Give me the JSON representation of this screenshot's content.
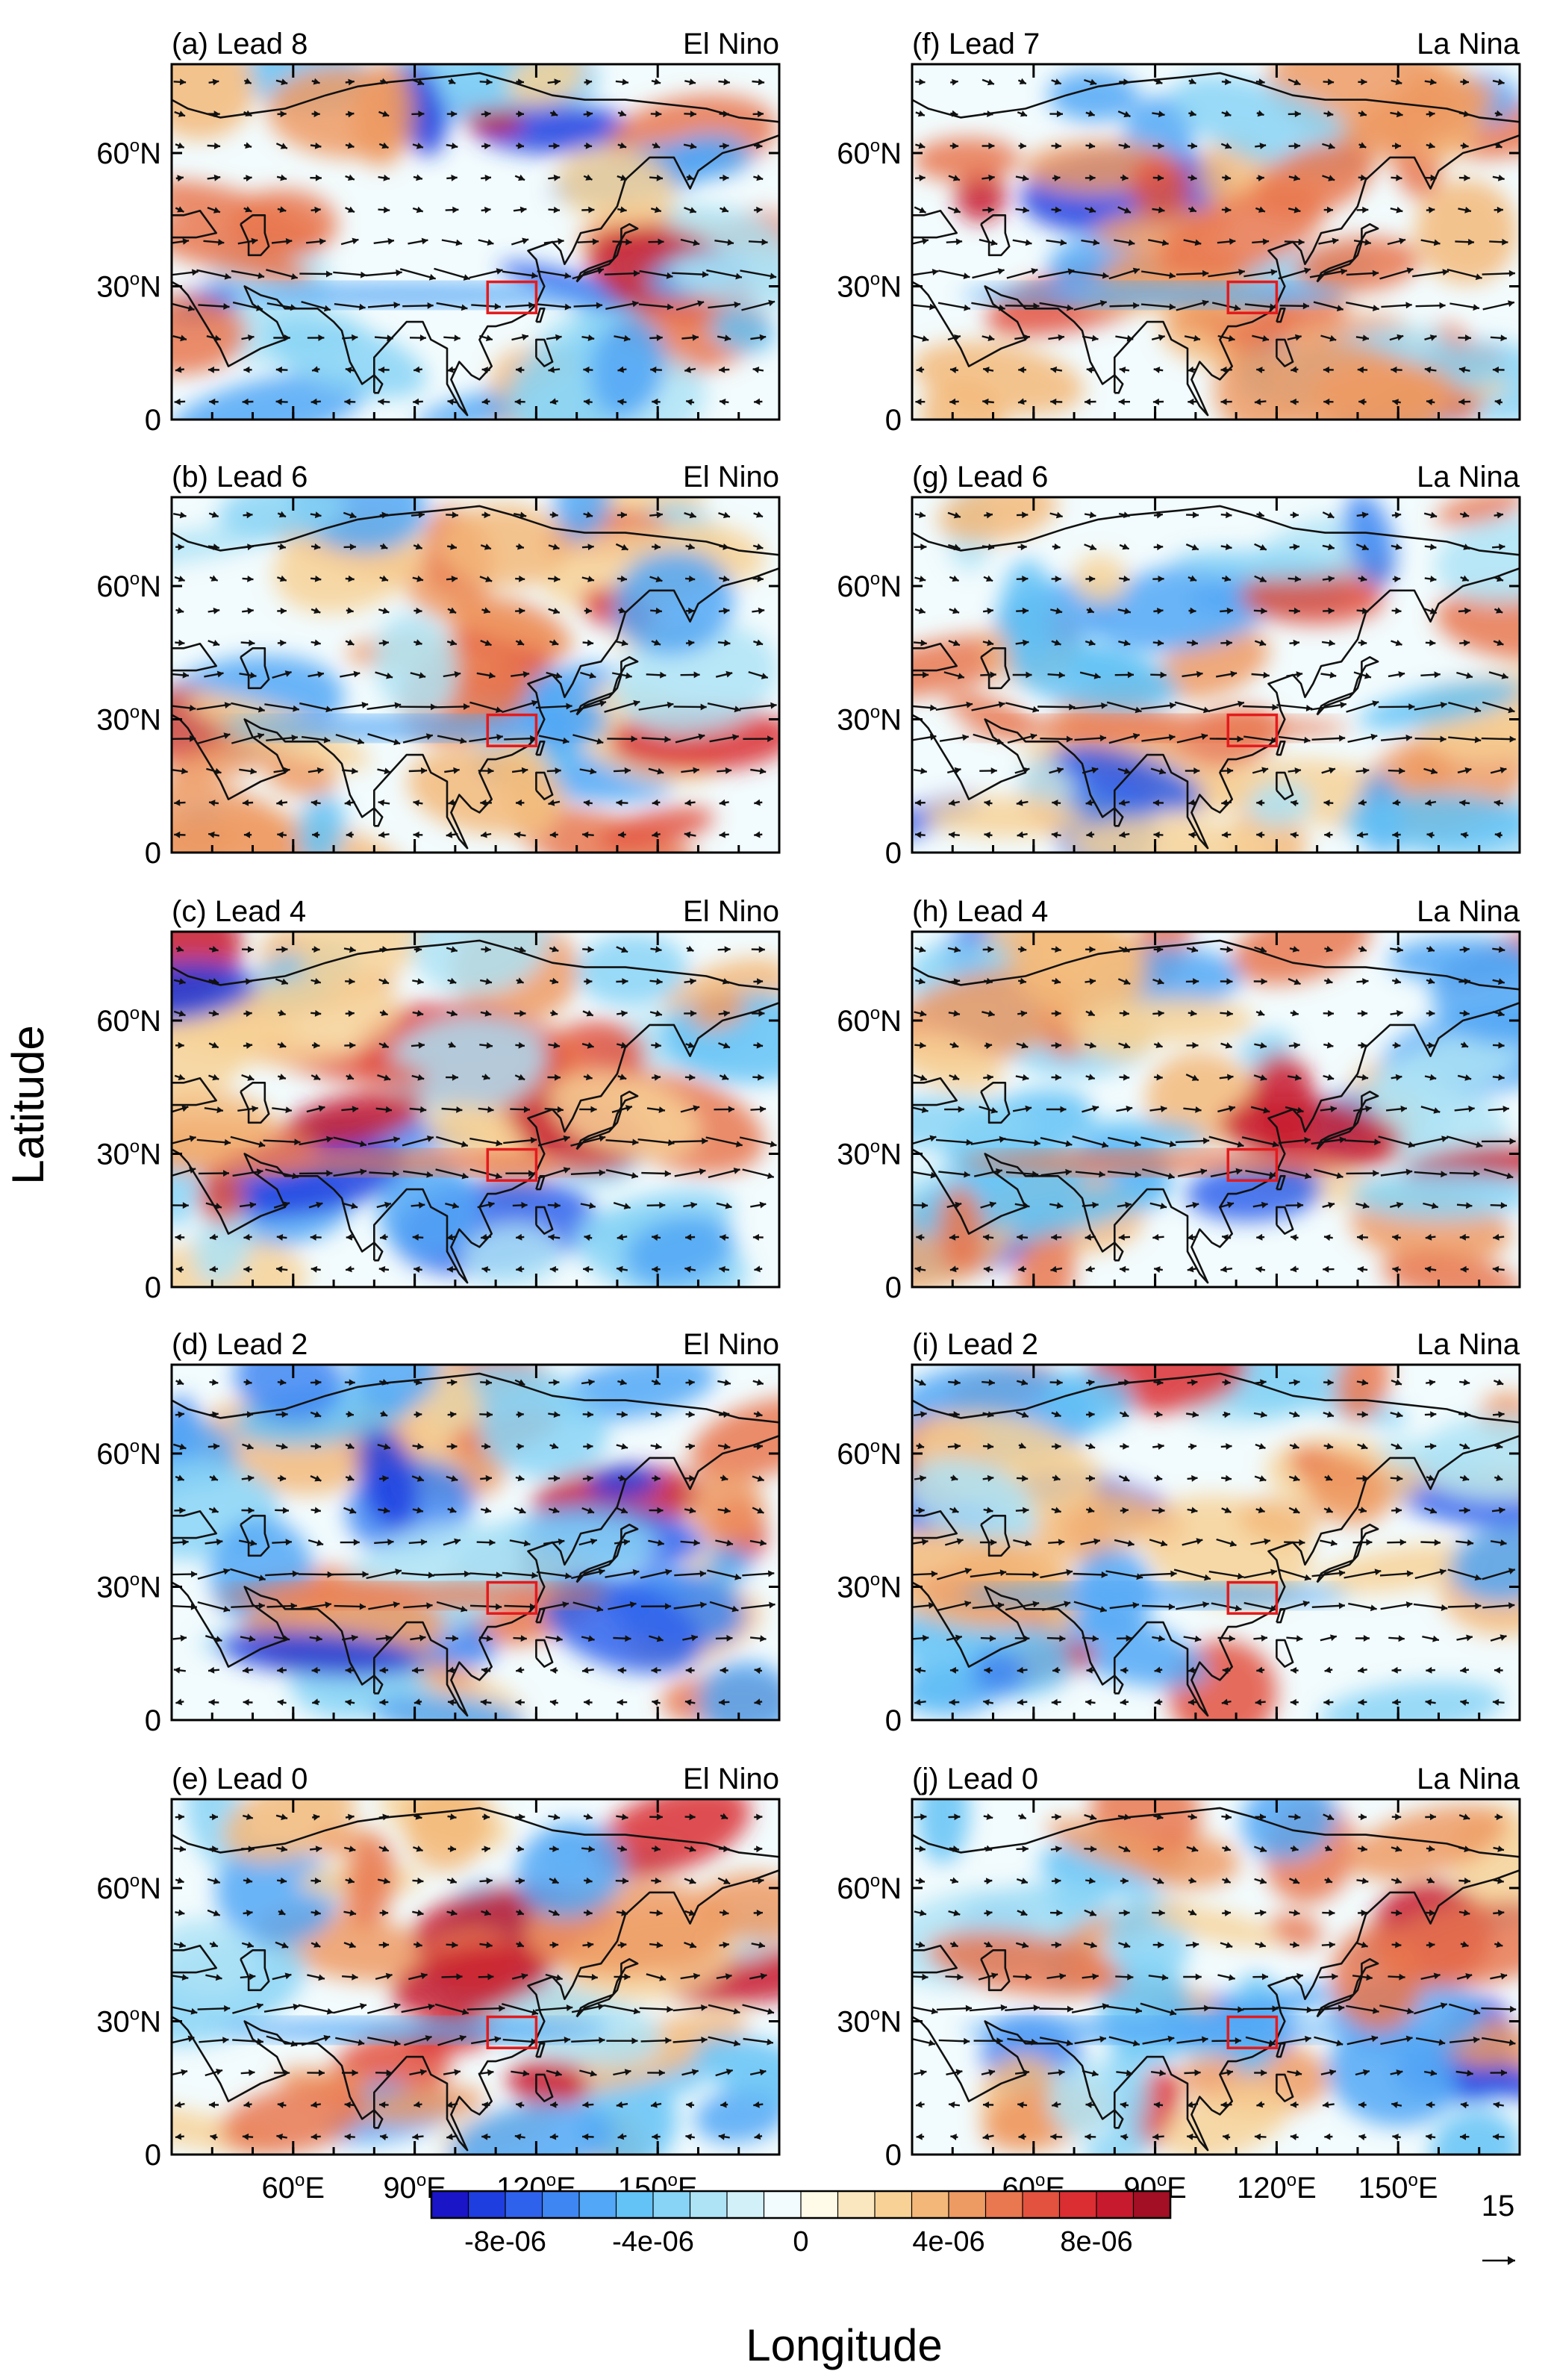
{
  "figure": {
    "ylabel": "Latitude",
    "xlabel": "Longitude",
    "degree_symbol": "o",
    "y_ticks_left": [
      {
        "value": 60,
        "label": "60",
        "suffix": "N"
      },
      {
        "value": 30,
        "label": "30",
        "suffix": "N"
      },
      {
        "value": 0,
        "label": "0",
        "suffix": ""
      }
    ],
    "x_ticks_left_column": [
      {
        "value": 60,
        "label": "60",
        "suffix": "E"
      },
      {
        "value": 90,
        "label": "90",
        "suffix": "E"
      },
      {
        "value": 120,
        "label": "120",
        "suffix": "E"
      },
      {
        "value": 150,
        "label": "150",
        "suffix": "E"
      }
    ],
    "x_ticks_right_column": [
      {
        "value": 60,
        "label": "60",
        "suffix": "E"
      },
      {
        "value": 90,
        "label": "90",
        "suffix": "E"
      },
      {
        "value": 120,
        "label": "120",
        "suffix": "E"
      },
      {
        "value": 150,
        "label": "150",
        "suffix": "E"
      }
    ],
    "reference_vector": {
      "magnitude": "15"
    }
  },
  "panels": [
    {
      "id": "a",
      "label": "(a) Lead 8",
      "phase": "El Nino",
      "lead": 8
    },
    {
      "id": "b",
      "label": "(b) Lead 6",
      "phase": "El Nino",
      "lead": 6
    },
    {
      "id": "c",
      "label": "(c) Lead 4",
      "phase": "El Nino",
      "lead": 4
    },
    {
      "id": "d",
      "label": "(d) Lead 2",
      "phase": "El Nino",
      "lead": 2
    },
    {
      "id": "e",
      "label": "(e) Lead 0",
      "phase": "El Nino",
      "lead": 0
    },
    {
      "id": "f",
      "label": "(f) Lead 7",
      "phase": "La Nina",
      "lead": 7
    },
    {
      "id": "g",
      "label": "(g) Lead 6",
      "phase": "La Nina",
      "lead": 6
    },
    {
      "id": "h",
      "label": "(h) Lead 4",
      "phase": "La Nina",
      "lead": 4
    },
    {
      "id": "i",
      "label": "(i) Lead 2",
      "phase": "La Nina",
      "lead": 2
    },
    {
      "id": "j",
      "label": "(j) Lead 0",
      "phase": "La Nina",
      "lead": 0
    }
  ],
  "colorbar": {
    "colors": [
      "#1b15c8",
      "#1f3ee0",
      "#2f62ec",
      "#3e86f2",
      "#52a7f6",
      "#63c2f6",
      "#88d4f6",
      "#aee3f6",
      "#d2f0f8",
      "#f2fbfd",
      "#fffbe8",
      "#fbe7bf",
      "#f7d196",
      "#f3b879",
      "#ee9a63",
      "#e9774f",
      "#e3523e",
      "#da2e33",
      "#c81a2e",
      "#a30f25"
    ],
    "ticks": [
      {
        "label": "-8e-06",
        "after_color_index": 1
      },
      {
        "label": "-4e-06",
        "after_color_index": 5
      },
      {
        "label": "0",
        "after_color_index": 9
      },
      {
        "label": "4e-06",
        "after_color_index": 13
      },
      {
        "label": "8e-06",
        "after_color_index": 17
      }
    ]
  },
  "target_region": {
    "lon_min": 108,
    "lon_max": 120,
    "lat_min": 24,
    "lat_max": 31,
    "color": "#e41a1c"
  },
  "map_domain": {
    "lon_min": 30,
    "lon_max": 180,
    "lat_min": 0,
    "lat_max": 80
  }
}
